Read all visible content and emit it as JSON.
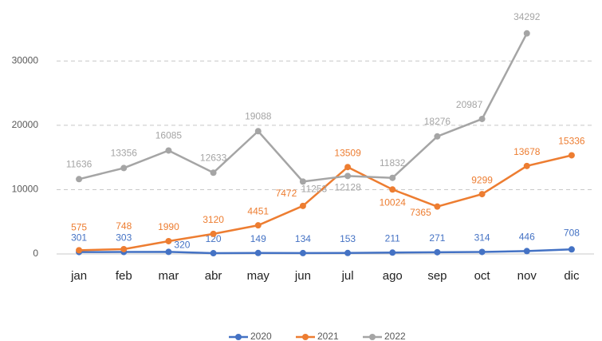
{
  "chart_data": {
    "type": "line",
    "categories": [
      "jan",
      "feb",
      "mar",
      "abr",
      "may",
      "jun",
      "jul",
      "ago",
      "sep",
      "oct",
      "nov",
      "dic"
    ],
    "series": [
      {
        "name": "2020",
        "color": "#4472c4",
        "values": [
          301,
          303,
          320,
          120,
          149,
          134,
          153,
          211,
          271,
          314,
          446,
          708
        ]
      },
      {
        "name": "2021",
        "color": "#ed7d31",
        "values": [
          575,
          748,
          1990,
          3120,
          4451,
          7472,
          13509,
          10024,
          7365,
          9299,
          13678,
          15336
        ]
      },
      {
        "name": "2022",
        "color": "#a5a5a5",
        "values": [
          11636,
          13356,
          16085,
          12633,
          19088,
          11253,
          12128,
          11832,
          18276,
          20987,
          34292,
          null
        ]
      }
    ],
    "ylim": [
      0,
      37000
    ],
    "yticks": [
      0,
      10000,
      20000,
      30000
    ],
    "grid": true,
    "legend": "bottom"
  }
}
